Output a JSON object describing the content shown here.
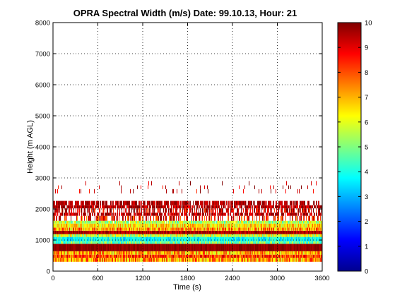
{
  "chart_data": {
    "type": "heatmap",
    "title": "OPRA Spectral Width (m/s)  Date: 99.10.13, Hour: 21",
    "xlabel": "Time (s)",
    "ylabel": "Height (m AGL)",
    "xlim": [
      0,
      3600
    ],
    "ylim": [
      0,
      8000
    ],
    "xticks": [
      "0",
      "600",
      "1200",
      "1800",
      "2400",
      "3000",
      "3600"
    ],
    "yticks": [
      "0",
      "1000",
      "2000",
      "3000",
      "4000",
      "5000",
      "6000",
      "7000",
      "8000"
    ],
    "grid": true,
    "colorbar": {
      "range": [
        0,
        10
      ],
      "ticks": [
        "0",
        "1",
        "2",
        "3",
        "4",
        "5",
        "6",
        "7",
        "8",
        "9",
        "10"
      ],
      "colormap": "jet"
    },
    "bands": [
      {
        "y0": 300,
        "y1": 430,
        "value": 7.2,
        "coverage": 1.0,
        "variability": 1.5
      },
      {
        "y0": 430,
        "y1": 530,
        "value": 8.2,
        "coverage": 1.0,
        "variability": 1.2
      },
      {
        "y0": 530,
        "y1": 640,
        "value": 7.0,
        "coverage": 1.0,
        "variability": 1.5
      },
      {
        "y0": 640,
        "y1": 880,
        "value": 9.8,
        "coverage": 1.0,
        "variability": 0.3
      },
      {
        "y0": 880,
        "y1": 960,
        "value": 4.8,
        "coverage": 1.0,
        "variability": 1.2
      },
      {
        "y0": 960,
        "y1": 1100,
        "value": 3.8,
        "coverage": 1.0,
        "variability": 0.8
      },
      {
        "y0": 1100,
        "y1": 1190,
        "value": 5.8,
        "coverage": 1.0,
        "variability": 1.2
      },
      {
        "y0": 1190,
        "y1": 1300,
        "value": 9.6,
        "coverage": 1.0,
        "variability": 0.6
      },
      {
        "y0": 1300,
        "y1": 1400,
        "value": 7.2,
        "coverage": 1.0,
        "variability": 1.6
      },
      {
        "y0": 1400,
        "y1": 1530,
        "value": 6.5,
        "coverage": 1.0,
        "variability": 1.2
      },
      {
        "y0": 1530,
        "y1": 1620,
        "value": 5.5,
        "coverage": 0.97,
        "variability": 1.2
      },
      {
        "y0": 1620,
        "y1": 1780,
        "value": 8.5,
        "coverage": 0.5,
        "variability": 1.4
      },
      {
        "y0": 1780,
        "y1": 1880,
        "value": 9.5,
        "coverage": 0.8,
        "variability": 0.8
      },
      {
        "y0": 1880,
        "y1": 2020,
        "value": 9.2,
        "coverage": 0.55,
        "variability": 1.2
      },
      {
        "y0": 2020,
        "y1": 2120,
        "value": 9.5,
        "coverage": 0.85,
        "variability": 0.8
      },
      {
        "y0": 2120,
        "y1": 2260,
        "value": 9.6,
        "coverage": 0.75,
        "variability": 0.6
      },
      {
        "y0": 2500,
        "y1": 2640,
        "value": 9.2,
        "coverage": 0.07,
        "variability": 1.0
      },
      {
        "y0": 2640,
        "y1": 2760,
        "value": 9.4,
        "coverage": 0.05,
        "variability": 1.0
      },
      {
        "y0": 2760,
        "y1": 2900,
        "value": 9.5,
        "coverage": 0.03,
        "variability": 1.0
      }
    ]
  }
}
